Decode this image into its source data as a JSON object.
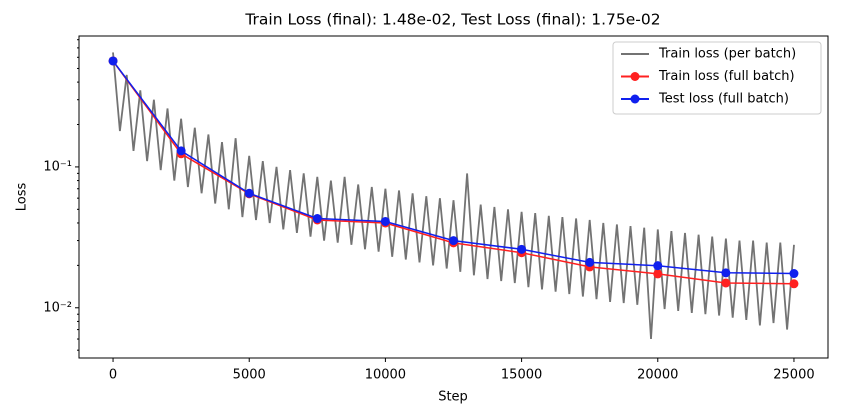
{
  "chart_data": {
    "type": "line",
    "title": "Train Loss (final): 1.48e-02, Test Loss (final): 1.75e-02",
    "xlabel": "Step",
    "ylabel": "Loss",
    "yscale": "log",
    "xlim": [
      -1250,
      26250
    ],
    "ylim": [
      0.0044,
      0.85
    ],
    "xticks": [
      0,
      5000,
      10000,
      15000,
      20000,
      25000
    ],
    "yticks": [
      {
        "value": 0.01,
        "label": "10⁻²"
      },
      {
        "value": 0.1,
        "label": "10⁻¹"
      }
    ],
    "yticks_minor": [
      0.005,
      0.006,
      0.007,
      0.008,
      0.009,
      0.02,
      0.03,
      0.04,
      0.05,
      0.06,
      0.07,
      0.08,
      0.09,
      0.2,
      0.3,
      0.4,
      0.5,
      0.6,
      0.7,
      0.8
    ],
    "legend": "upper right",
    "series": [
      {
        "name": "Train loss (per batch)",
        "color": "#737373",
        "marker": false,
        "x": [
          0,
          250,
          500,
          750,
          1000,
          1250,
          1500,
          1750,
          2000,
          2250,
          2500,
          2750,
          3000,
          3250,
          3500,
          3750,
          4000,
          4250,
          4500,
          4750,
          5000,
          5250,
          5500,
          5750,
          6000,
          6250,
          6500,
          6750,
          7000,
          7250,
          7500,
          7750,
          8000,
          8250,
          8500,
          8750,
          9000,
          9250,
          9500,
          9750,
          10000,
          10250,
          10500,
          10750,
          11000,
          11250,
          11500,
          11750,
          12000,
          12250,
          12500,
          12750,
          13000,
          13250,
          13500,
          13750,
          14000,
          14250,
          14500,
          14750,
          15000,
          15250,
          15500,
          15750,
          16000,
          16250,
          16500,
          16750,
          17000,
          17250,
          17500,
          17750,
          18000,
          18250,
          18500,
          18750,
          19000,
          19250,
          19500,
          19750,
          20000,
          20250,
          20500,
          20750,
          21000,
          21250,
          21500,
          21750,
          22000,
          22250,
          22500,
          22750,
          23000,
          23250,
          23500,
          23750,
          24000,
          24250,
          24500,
          24750,
          25000
        ],
        "values": [
          0.65,
          0.18,
          0.45,
          0.13,
          0.35,
          0.11,
          0.3,
          0.095,
          0.26,
          0.08,
          0.22,
          0.072,
          0.19,
          0.065,
          0.17,
          0.055,
          0.15,
          0.05,
          0.16,
          0.044,
          0.12,
          0.042,
          0.11,
          0.04,
          0.1,
          0.036,
          0.095,
          0.034,
          0.09,
          0.032,
          0.085,
          0.03,
          0.08,
          0.029,
          0.085,
          0.028,
          0.075,
          0.026,
          0.072,
          0.025,
          0.07,
          0.023,
          0.068,
          0.022,
          0.065,
          0.021,
          0.062,
          0.02,
          0.06,
          0.019,
          0.058,
          0.018,
          0.09,
          0.017,
          0.054,
          0.016,
          0.052,
          0.0155,
          0.05,
          0.015,
          0.048,
          0.014,
          0.047,
          0.0135,
          0.045,
          0.013,
          0.044,
          0.0125,
          0.043,
          0.012,
          0.042,
          0.0115,
          0.04,
          0.011,
          0.039,
          0.0108,
          0.038,
          0.0105,
          0.037,
          0.006,
          0.036,
          0.0098,
          0.035,
          0.0095,
          0.034,
          0.0092,
          0.033,
          0.009,
          0.032,
          0.0088,
          0.031,
          0.0085,
          0.03,
          0.0082,
          0.03,
          0.0075,
          0.029,
          0.0078,
          0.029,
          0.007,
          0.028
        ]
      },
      {
        "name": "Train loss (full batch)",
        "color": "#ff2020",
        "marker": true,
        "x": [
          0,
          2500,
          5000,
          7500,
          10000,
          12500,
          15000,
          17500,
          20000,
          22500,
          25000
        ],
        "values": [
          0.565,
          0.124,
          0.0644,
          0.042,
          0.04,
          0.0289,
          0.0246,
          0.0195,
          0.0174,
          0.015,
          0.0148
        ]
      },
      {
        "name": "Test loss (full batch)",
        "color": "#1020ee",
        "marker": true,
        "x": [
          0,
          2500,
          5000,
          7500,
          10000,
          12500,
          15000,
          17500,
          20000,
          22500,
          25000
        ],
        "values": [
          0.565,
          0.13,
          0.065,
          0.043,
          0.041,
          0.03,
          0.026,
          0.021,
          0.0199,
          0.0177,
          0.0175
        ]
      }
    ]
  }
}
